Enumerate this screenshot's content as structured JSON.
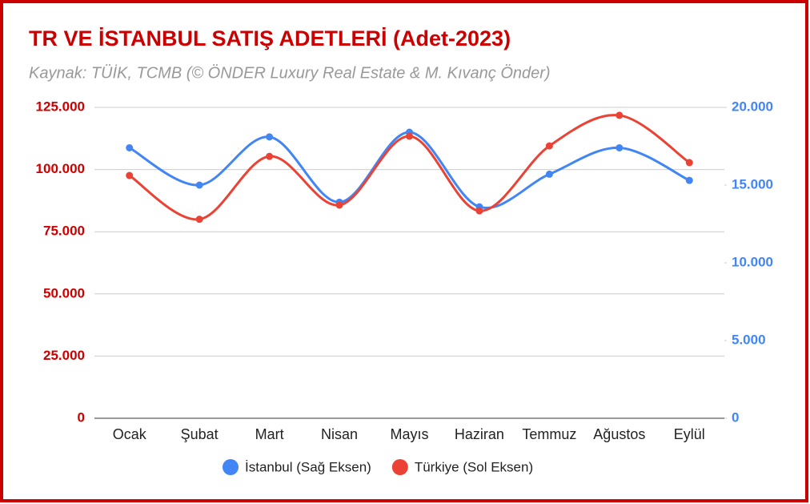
{
  "chart_data": {
    "type": "line",
    "title": "TR VE İSTANBUL SATIŞ ADETLERİ (Adet-2023)",
    "subtitle": "Kaynak: TÜİK, TCMB (© ÖNDER Luxury Real Estate & M. Kıvanç Önder)",
    "categories": [
      "Ocak",
      "Şubat",
      "Mart",
      "Nisan",
      "Mayıs",
      "Haziran",
      "Temmuz",
      "Ağustos",
      "Eylül"
    ],
    "series": [
      {
        "name": "İstanbul (Sağ Eksen)",
        "color": "#4285f4",
        "axis": "y2",
        "values": [
          17400,
          15000,
          18100,
          13900,
          18400,
          13600,
          15700,
          17400,
          15300
        ]
      },
      {
        "name": "Türkiye (Sol Eksen)",
        "color": "#ea4335",
        "values": [
          97600,
          80000,
          105300,
          85700,
          113400,
          83400,
          109500,
          121800,
          102800
        ]
      }
    ],
    "ylim": [
      0,
      125000
    ],
    "yticks": [
      0,
      {
        "value": 25000,
        "label": "25.000"
      },
      {
        "value": 50000,
        "label": "50.000"
      },
      {
        "value": 75000,
        "label": "75.000"
      },
      {
        "value": 100000,
        "label": "100.000"
      },
      {
        "value": 125000,
        "label": "125.000"
      }
    ],
    "y2lim": [
      0,
      20000
    ],
    "y2ticks": [
      0,
      {
        "value": 5000,
        "label": "5.000"
      },
      {
        "value": 10000,
        "label": "10.000"
      },
      {
        "value": 15000,
        "label": "15.000"
      },
      {
        "value": 20000,
        "label": "20.000"
      }
    ],
    "ycolor": "#cc0000",
    "y2color": "#4285f4",
    "grid": true,
    "smooth": true,
    "legend": "bottom"
  }
}
